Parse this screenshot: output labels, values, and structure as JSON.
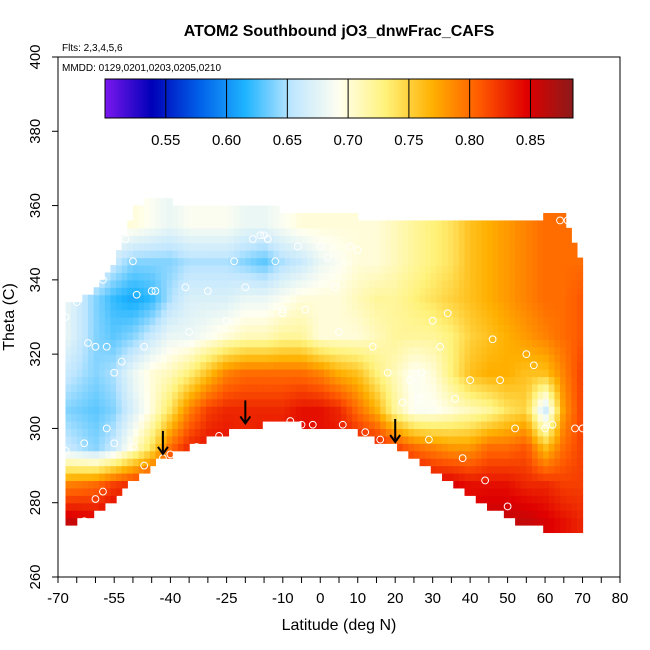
{
  "chart_data": {
    "type": "heatmap",
    "title": "ATOM2 Southbound jO3_dnwFrac_CAFS",
    "annotations": {
      "flights": "Flts: 2,3,4,5,6",
      "dates": "MMDD: 0129,0201,0203,0205,0210"
    },
    "xlabel": "Latitude (deg N)",
    "ylabel": "Theta (C)",
    "xlim": [
      -70,
      80
    ],
    "ylim": [
      260,
      400
    ],
    "x_ticks": [
      "-70",
      "-55",
      "-40",
      "-25",
      "-10",
      "0",
      "10",
      "20",
      "30",
      "40",
      "50",
      "60",
      "70",
      "80"
    ],
    "y_ticks": [
      "260",
      "280",
      "300",
      "320",
      "340",
      "360",
      "380",
      "400"
    ],
    "grid": false,
    "colorbar": {
      "placement": "top",
      "range": [
        0.5,
        0.885
      ],
      "ticks": [
        "0.55",
        "0.60",
        "0.65",
        "0.70",
        "0.75",
        "0.80",
        "0.85"
      ],
      "colors": [
        "#7a18ee",
        "#0000b8",
        "#005ee8",
        "#1fb4ff",
        "#bfe6ff",
        "#fffff0",
        "#fff27a",
        "#ffb000",
        "#ff5a00",
        "#e00000",
        "#8c1a1a"
      ]
    },
    "field": {
      "lats": [
        -68,
        -60,
        -55,
        -50,
        -45,
        -40,
        -35,
        -30,
        -25,
        -20,
        -15,
        -10,
        -5,
        0,
        5,
        10,
        15,
        20,
        25,
        30,
        35,
        40,
        45,
        50,
        55,
        60,
        65,
        70
      ],
      "top": [
        332,
        336,
        344,
        358,
        362,
        360,
        360,
        360,
        360,
        360,
        360,
        357,
        357,
        357,
        357,
        356,
        356,
        356,
        356,
        356,
        356,
        356,
        356,
        356,
        356,
        356,
        357,
        342
      ],
      "bottom": [
        274,
        277,
        281,
        286,
        290,
        293,
        295,
        297,
        299,
        300,
        301,
        302,
        301,
        301,
        300,
        299,
        297,
        295,
        292,
        289,
        285,
        282,
        279,
        276,
        274,
        273,
        272,
        271
      ],
      "theta": [
        275,
        285,
        295,
        305,
        315,
        325,
        335,
        345,
        355
      ],
      "values": [
        [
          0.86,
          0.85,
          0.86,
          0.86,
          0.86,
          0.86,
          0.85,
          0.85,
          0.85,
          0.85,
          0.85,
          0.85,
          0.85,
          0.85,
          0.85,
          0.85,
          0.85,
          0.85,
          0.85,
          0.85,
          0.85,
          0.85,
          0.86,
          0.86,
          0.86,
          0.85,
          0.84,
          0.83
        ],
        [
          0.79,
          0.8,
          0.82,
          0.83,
          0.84,
          0.85,
          0.86,
          0.86,
          0.86,
          0.86,
          0.86,
          0.86,
          0.86,
          0.86,
          0.86,
          0.86,
          0.86,
          0.86,
          0.86,
          0.85,
          0.85,
          0.84,
          0.84,
          0.84,
          0.83,
          0.83,
          0.82,
          0.82
        ],
        [
          0.66,
          0.64,
          0.66,
          0.7,
          0.74,
          0.8,
          0.83,
          0.84,
          0.84,
          0.83,
          0.84,
          0.84,
          0.84,
          0.84,
          0.84,
          0.84,
          0.84,
          0.82,
          0.8,
          0.79,
          0.78,
          0.78,
          0.8,
          0.8,
          0.81,
          0.76,
          0.8,
          0.82
        ],
        [
          0.64,
          0.63,
          0.64,
          0.67,
          0.7,
          0.74,
          0.79,
          0.82,
          0.83,
          0.83,
          0.83,
          0.83,
          0.84,
          0.84,
          0.83,
          0.8,
          0.77,
          0.72,
          0.69,
          0.69,
          0.7,
          0.71,
          0.72,
          0.74,
          0.75,
          0.66,
          0.78,
          0.82
        ],
        [
          0.66,
          0.64,
          0.65,
          0.68,
          0.7,
          0.71,
          0.73,
          0.76,
          0.79,
          0.8,
          0.8,
          0.8,
          0.8,
          0.79,
          0.77,
          0.76,
          0.73,
          0.71,
          0.69,
          0.7,
          0.73,
          0.76,
          0.77,
          0.77,
          0.76,
          0.76,
          0.79,
          0.82
        ],
        [
          0.68,
          0.64,
          0.63,
          0.64,
          0.66,
          0.68,
          0.68,
          0.69,
          0.7,
          0.71,
          0.71,
          0.72,
          0.72,
          0.7,
          0.7,
          0.7,
          0.71,
          0.72,
          0.72,
          0.72,
          0.73,
          0.75,
          0.76,
          0.77,
          0.78,
          0.79,
          0.8,
          0.81
        ],
        [
          0.68,
          0.64,
          0.62,
          0.61,
          0.62,
          0.65,
          0.67,
          0.67,
          0.67,
          0.68,
          0.68,
          0.69,
          0.7,
          0.7,
          0.7,
          0.71,
          0.72,
          0.72,
          0.73,
          0.74,
          0.75,
          0.76,
          0.77,
          0.78,
          0.79,
          0.8,
          0.8,
          0.81
        ],
        [
          0.72,
          0.69,
          0.66,
          0.64,
          0.64,
          0.64,
          0.65,
          0.65,
          0.65,
          0.64,
          0.63,
          0.65,
          0.66,
          0.68,
          0.69,
          0.7,
          0.7,
          0.71,
          0.72,
          0.73,
          0.74,
          0.76,
          0.77,
          0.78,
          0.79,
          0.8,
          0.8,
          0.8
        ],
        [
          0.72,
          0.71,
          0.7,
          0.7,
          0.69,
          0.68,
          0.69,
          0.69,
          0.69,
          0.68,
          0.68,
          0.69,
          0.7,
          0.7,
          0.7,
          0.7,
          0.7,
          0.71,
          0.72,
          0.73,
          0.74,
          0.76,
          0.77,
          0.78,
          0.79,
          0.8,
          0.8,
          0.8
        ]
      ]
    },
    "obs_points": [
      [
        -68,
        330
      ],
      [
        -65,
        334
      ],
      [
        -62,
        323
      ],
      [
        -60,
        322
      ],
      [
        -58,
        340
      ],
      [
        -57,
        322
      ],
      [
        -55,
        315
      ],
      [
        -53,
        318
      ],
      [
        -52,
        351
      ],
      [
        -50,
        345
      ],
      [
        -49,
        336
      ],
      [
        -47,
        322
      ],
      [
        -45,
        337
      ],
      [
        -44,
        337
      ],
      [
        -42,
        292
      ],
      [
        -40,
        293
      ],
      [
        -36,
        338
      ],
      [
        -35,
        326
      ],
      [
        -33,
        295
      ],
      [
        -30,
        337
      ],
      [
        -27,
        298
      ],
      [
        -25,
        329
      ],
      [
        -23,
        345
      ],
      [
        -20,
        338
      ],
      [
        -18,
        351
      ],
      [
        -16,
        352
      ],
      [
        -15,
        352
      ],
      [
        -14,
        351
      ],
      [
        -14,
        351
      ],
      [
        -12,
        345
      ],
      [
        -10,
        332
      ],
      [
        -10,
        331
      ],
      [
        -8,
        302
      ],
      [
        -6,
        349
      ],
      [
        -4,
        332
      ],
      [
        -2,
        301
      ],
      [
        0,
        349
      ],
      [
        2,
        346
      ],
      [
        4,
        338
      ],
      [
        5,
        326
      ],
      [
        6,
        301
      ],
      [
        8,
        349
      ],
      [
        10,
        348
      ],
      [
        12,
        299
      ],
      [
        14,
        322
      ],
      [
        16,
        297
      ],
      [
        18,
        315
      ],
      [
        20,
        293
      ],
      [
        22,
        307
      ],
      [
        24,
        313
      ],
      [
        26,
        308
      ],
      [
        27,
        315
      ],
      [
        29,
        297
      ],
      [
        30,
        329
      ],
      [
        32,
        322
      ],
      [
        34,
        331
      ],
      [
        36,
        308
      ],
      [
        38,
        292
      ],
      [
        40,
        313
      ],
      [
        44,
        286
      ],
      [
        46,
        324
      ],
      [
        48,
        313
      ],
      [
        50,
        279
      ],
      [
        52,
        300
      ],
      [
        55,
        320
      ],
      [
        57,
        317
      ],
      [
        60,
        300
      ],
      [
        62,
        301
      ],
      [
        64,
        356
      ],
      [
        66,
        356
      ],
      [
        68,
        300
      ],
      [
        70,
        300
      ],
      [
        -55,
        296
      ],
      [
        -57,
        300
      ],
      [
        -63,
        296
      ],
      [
        -68,
        294
      ],
      [
        -63,
        275
      ],
      [
        -60,
        281
      ],
      [
        -58,
        283
      ],
      [
        -50,
        295
      ],
      [
        -47,
        290
      ],
      [
        -13,
        300
      ],
      [
        -8,
        299
      ],
      [
        -5,
        301
      ]
    ],
    "arrows_lat": [
      -42,
      -20,
      20
    ]
  }
}
